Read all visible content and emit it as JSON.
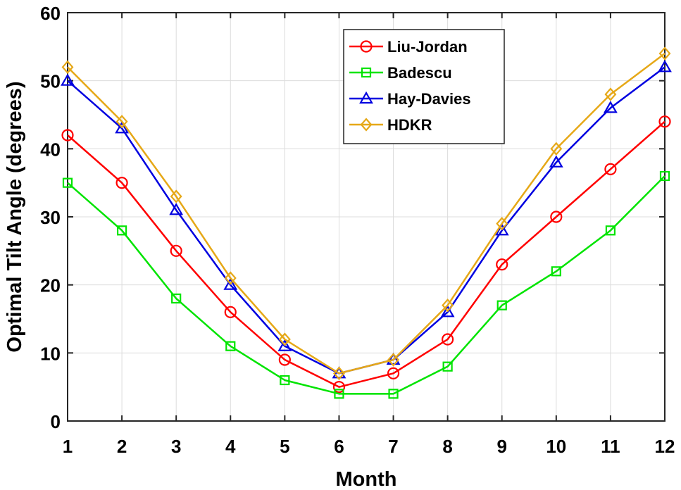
{
  "chart_data": {
    "type": "line",
    "title": "",
    "xlabel": "Month",
    "ylabel": "Optimal Tilt Angle (degrees)",
    "x": [
      1,
      2,
      3,
      4,
      5,
      6,
      7,
      8,
      9,
      10,
      11,
      12
    ],
    "xlim": [
      1,
      12
    ],
    "ylim": [
      0,
      60
    ],
    "xticks": [
      1,
      2,
      3,
      4,
      5,
      6,
      7,
      8,
      9,
      10,
      11,
      12
    ],
    "yticks": [
      0,
      10,
      20,
      30,
      40,
      50,
      60
    ],
    "grid": true,
    "legend_position": "top-right",
    "series": [
      {
        "name": "Liu-Jordan",
        "color": "#ff0000",
        "marker": "circle",
        "values": [
          42,
          35,
          25,
          16,
          9,
          5,
          7,
          12,
          23,
          30,
          37,
          44
        ]
      },
      {
        "name": "Badescu",
        "color": "#00e400",
        "marker": "square",
        "values": [
          35,
          28,
          18,
          11,
          6,
          4,
          4,
          8,
          17,
          22,
          28,
          36
        ]
      },
      {
        "name": "Hay-Davies",
        "color": "#0000e0",
        "marker": "triangle",
        "values": [
          50,
          43,
          31,
          20,
          11,
          7,
          9,
          16,
          28,
          38,
          46,
          52
        ]
      },
      {
        "name": "HDKR",
        "color": "#e6a817",
        "marker": "diamond",
        "values": [
          52,
          44,
          33,
          21,
          12,
          7,
          9,
          17,
          29,
          40,
          48,
          54
        ]
      }
    ]
  }
}
